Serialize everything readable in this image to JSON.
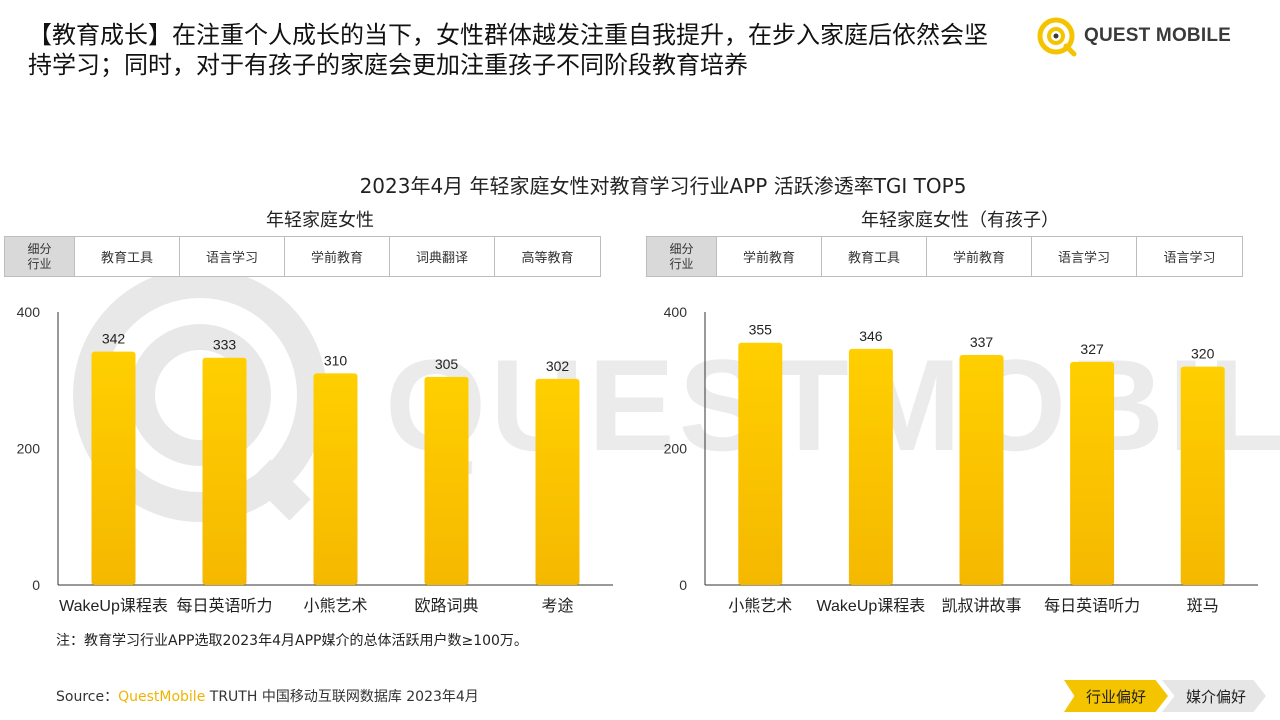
{
  "headline": "【教育成长】在注重个人成长的当下，女性群体越发注重自我提升，在步入家庭后依然会坚持学习；同时，对于有孩子的家庭会更加注重孩子不同阶段教育培养",
  "logo": {
    "text": "QUEST MOBILE",
    "color": "#f5c400"
  },
  "watermark": {
    "text": "QUESTMOBILE"
  },
  "main_title": "2023年4月 年轻家庭女性对教育学习行业APP 活跃渗透率TGI TOP5",
  "panels": [
    {
      "title": "年轻家庭女性",
      "table_head": [
        "细分",
        "行业"
      ],
      "categories_industry": [
        "教育工具",
        "语言学习",
        "学前教育",
        "词典翻译",
        "高等教育"
      ]
    },
    {
      "title": "年轻家庭女性（有孩子）",
      "table_head": [
        "细分",
        "行业"
      ],
      "categories_industry": [
        "学前教育",
        "教育工具",
        "学前教育",
        "语言学习",
        "语言学习"
      ]
    }
  ],
  "chart_data": [
    {
      "type": "bar",
      "title": "年轻家庭女性",
      "categories": [
        "WakeUp课程表",
        "每日英语听力",
        "小熊艺术",
        "欧路词典",
        "考途"
      ],
      "values": [
        342,
        333,
        310,
        305,
        302
      ],
      "ylim": [
        0,
        400
      ],
      "yticks": [
        "0",
        "200",
        "400"
      ],
      "data_labels": [
        "342",
        "333",
        "310",
        "305",
        "302"
      ],
      "bar_color": "#f5b800",
      "grid": false
    },
    {
      "type": "bar",
      "title": "年轻家庭女性（有孩子）",
      "categories": [
        "小熊艺术",
        "WakeUp课程表",
        "凯叔讲故事",
        "每日英语听力",
        "斑马"
      ],
      "values": [
        355,
        346,
        337,
        327,
        320
      ],
      "ylim": [
        0,
        400
      ],
      "yticks": [
        "0",
        "200",
        "400"
      ],
      "data_labels": [
        "355",
        "346",
        "337",
        "327",
        "320"
      ],
      "bar_color": "#f5b800",
      "grid": false
    }
  ],
  "note": "注：教育学习行业APP选取2023年4月APP媒介的总体活跃用户数≥100万。",
  "source": {
    "prefix": "Source：",
    "brand": "QuestMobile",
    "rest": " TRUTH 中国移动互联网数据库 2023年4月"
  },
  "tags": {
    "industry": "行业偏好",
    "media": "媒介偏好"
  }
}
